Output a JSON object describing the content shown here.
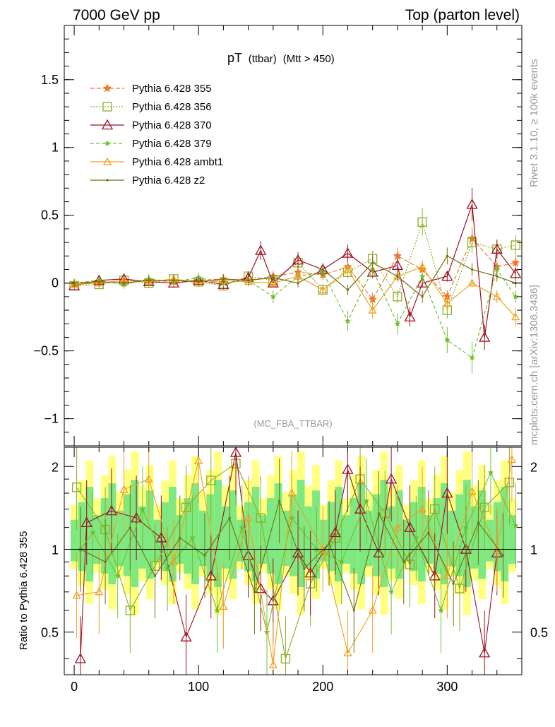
{
  "header": {
    "left": "7000 GeV pp",
    "right": "Top (parton level)"
  },
  "side_labels": {
    "right_top": "Rivet 3.1.10, ≥ 100k events",
    "right_bottom": "mcplots.cern.ch [arXiv:1306.3436]"
  },
  "chart_data": [
    {
      "type": "scatter",
      "title_main": "pT",
      "title_small1": "(ttbar)",
      "title_small2": "(Mtt > 450)",
      "watermark": "(MC_FBA_TTBAR)",
      "xlim": [
        -8,
        360
      ],
      "ylim": [
        -1.2,
        1.9
      ],
      "yticks": [
        -1,
        -0.5,
        0,
        0.5,
        1,
        1.5
      ],
      "ytick_labels": [
        "−1",
        "−0.5",
        "0",
        "0.5",
        "1",
        "1.5"
      ],
      "legend_position": "top-left",
      "series": [
        {
          "name": "Pythia 6.428 355",
          "color": "#f07828",
          "marker": "star",
          "dash": "6,3",
          "x": [
            0,
            20,
            40,
            60,
            80,
            100,
            120,
            140,
            160,
            180,
            200,
            220,
            240,
            260,
            280,
            300,
            320,
            340,
            355
          ],
          "y": [
            -0.01,
            0.01,
            0.0,
            0.02,
            0.01,
            0.02,
            0.03,
            0.02,
            0.05,
            0.08,
            0.06,
            0.12,
            -0.12,
            0.2,
            0.1,
            -0.1,
            0.33,
            0.12,
            0.15
          ]
        },
        {
          "name": "Pythia 6.428 356",
          "color": "#8ab020",
          "marker": "square",
          "dash": "2,2",
          "x": [
            0,
            20,
            40,
            60,
            80,
            100,
            120,
            140,
            160,
            180,
            200,
            220,
            240,
            260,
            280,
            300,
            320,
            340,
            355
          ],
          "y": [
            -0.02,
            -0.01,
            0.02,
            0.0,
            0.03,
            0.01,
            -0.02,
            0.05,
            0.02,
            0.15,
            -0.05,
            0.08,
            0.18,
            -0.1,
            0.45,
            -0.2,
            0.3,
            0.25,
            0.28
          ]
        },
        {
          "name": "Pythia 6.428 370",
          "color": "#a01020",
          "marker": "triangle",
          "dash": "",
          "x": [
            0,
            20,
            40,
            60,
            80,
            100,
            120,
            140,
            150,
            160,
            180,
            200,
            220,
            240,
            260,
            270,
            280,
            300,
            320,
            330,
            340,
            355
          ],
          "y": [
            -0.02,
            0.02,
            0.03,
            0.01,
            0.0,
            0.02,
            -0.01,
            0.04,
            0.24,
            0.0,
            0.17,
            0.1,
            0.22,
            0.08,
            0.13,
            -0.25,
            0.0,
            0.05,
            0.58,
            -0.4,
            0.25,
            0.07
          ]
        },
        {
          "name": "Pythia 6.428 379",
          "color": "#70c030",
          "marker": "smallstar",
          "dash": "5,3",
          "x": [
            0,
            20,
            40,
            60,
            80,
            100,
            120,
            140,
            160,
            180,
            200,
            220,
            240,
            260,
            280,
            300,
            320,
            340,
            355
          ],
          "y": [
            0.0,
            0.02,
            -0.01,
            0.03,
            0.01,
            0.04,
            0.0,
            0.02,
            -0.1,
            0.05,
            0.08,
            -0.28,
            0.1,
            -0.3,
            0.05,
            -0.42,
            -0.55,
            0.1,
            -0.1
          ]
        },
        {
          "name": "Pythia 6.428 ambt1",
          "color": "#f0a020",
          "marker": "opentriangle",
          "dash": "",
          "x": [
            0,
            20,
            40,
            60,
            80,
            100,
            120,
            140,
            160,
            180,
            200,
            220,
            240,
            260,
            280,
            300,
            320,
            340,
            355
          ],
          "y": [
            -0.01,
            0.0,
            0.02,
            0.01,
            0.03,
            0.0,
            0.02,
            0.01,
            0.0,
            0.05,
            -0.05,
            0.1,
            -0.2,
            0.05,
            0.12,
            -0.15,
            0.0,
            -0.1,
            -0.25
          ]
        },
        {
          "name": "Pythia 6.428 z2",
          "color": "#707010",
          "marker": "dot",
          "dash": "",
          "x": [
            0,
            20,
            40,
            60,
            80,
            100,
            120,
            140,
            160,
            180,
            200,
            220,
            240,
            260,
            280,
            300,
            320,
            340,
            355
          ],
          "y": [
            0.0,
            0.01,
            0.0,
            0.02,
            0.02,
            0.01,
            0.03,
            0.02,
            0.04,
            0.0,
            0.1,
            -0.05,
            0.15,
            0.05,
            -0.1,
            0.2,
            0.1,
            0.05,
            0.0
          ]
        }
      ]
    },
    {
      "type": "scatter",
      "ylabel": "Ratio to Pythia 6.428 355",
      "xlim": [
        -8,
        360
      ],
      "ylim": [
        0.35,
        2.35
      ],
      "yticks": [
        0.5,
        1,
        2
      ],
      "ytick_labels": [
        "0.5",
        "1",
        "2"
      ],
      "xticks": [
        0,
        100,
        200,
        300
      ],
      "xtick_labels": [
        "0",
        "100",
        "200",
        "300"
      ],
      "reference_line": 1,
      "band_colors": [
        "#ffff80",
        "#80e880"
      ],
      "series": [
        {
          "name": "Pythia 6.428 356",
          "color": "#8ab020",
          "marker": "square",
          "x": [
            2,
            25,
            45,
            65,
            90,
            110,
            130,
            150,
            170,
            190,
            210,
            230,
            250,
            270,
            290,
            310,
            330,
            350
          ],
          "y": [
            1.68,
            1.18,
            0.6,
            0.87,
            1.42,
            1.78,
            2.05,
            1.3,
            0.4,
            0.75,
            1.1,
            1.8,
            1.35,
            0.88,
            1.4,
            0.72,
            1.42,
            1.75
          ]
        },
        {
          "name": "Pythia 6.428 370",
          "color": "#a01020",
          "marker": "triangle",
          "x": [
            5,
            10,
            30,
            50,
            70,
            90,
            110,
            130,
            140,
            150,
            160,
            180,
            190,
            210,
            220,
            230,
            245,
            255,
            270,
            290,
            300,
            315,
            330,
            340
          ],
          "y": [
            0.4,
            1.25,
            1.38,
            1.3,
            1.1,
            0.48,
            0.8,
            2.25,
            0.95,
            0.72,
            0.65,
            0.97,
            0.82,
            1.15,
            1.95,
            1.4,
            0.97,
            1.8,
            1.2,
            0.8,
            1.6,
            1.0,
            0.42,
            0.97
          ]
        },
        {
          "name": "Pythia 6.428 379",
          "color": "#70c030",
          "marker": "smallstar",
          "x": [
            5,
            15,
            35,
            55,
            75,
            95,
            115,
            135,
            155,
            175,
            195,
            215,
            235,
            255,
            275,
            295,
            315,
            335,
            355
          ],
          "y": [
            1.0,
            1.15,
            0.8,
            1.4,
            0.85,
            1.1,
            0.6,
            1.2,
            0.5,
            1.3,
            1.0,
            0.9,
            1.5,
            0.7,
            1.1,
            0.6,
            1.2,
            1.9,
            1.22
          ]
        },
        {
          "name": "Pythia 6.428 ambt1",
          "color": "#f0a020",
          "marker": "opentriangle",
          "x": [
            2,
            20,
            40,
            60,
            80,
            100,
            120,
            140,
            160,
            175,
            200,
            220,
            240,
            260,
            280,
            300,
            320,
            340,
            352
          ],
          "y": [
            0.68,
            0.7,
            1.65,
            1.8,
            0.9,
            2.1,
            0.62,
            1.3,
            0.38,
            1.6,
            1.0,
            0.42,
            0.6,
            1.2,
            1.4,
            0.8,
            1.62,
            1.0,
            2.12
          ]
        },
        {
          "name": "Pythia 6.428 z2",
          "color": "#707010",
          "marker": "dot",
          "x": [
            5,
            25,
            45,
            65,
            85,
            105,
            125,
            145,
            165,
            185,
            205,
            225,
            245,
            265,
            285,
            305,
            325,
            345
          ],
          "y": [
            1.0,
            0.9,
            1.2,
            0.8,
            1.1,
            0.95,
            1.3,
            0.7,
            1.5,
            0.85,
            1.05,
            0.6,
            1.35,
            0.9,
            1.15,
            0.75,
            1.25,
            0.95
          ]
        }
      ]
    }
  ]
}
